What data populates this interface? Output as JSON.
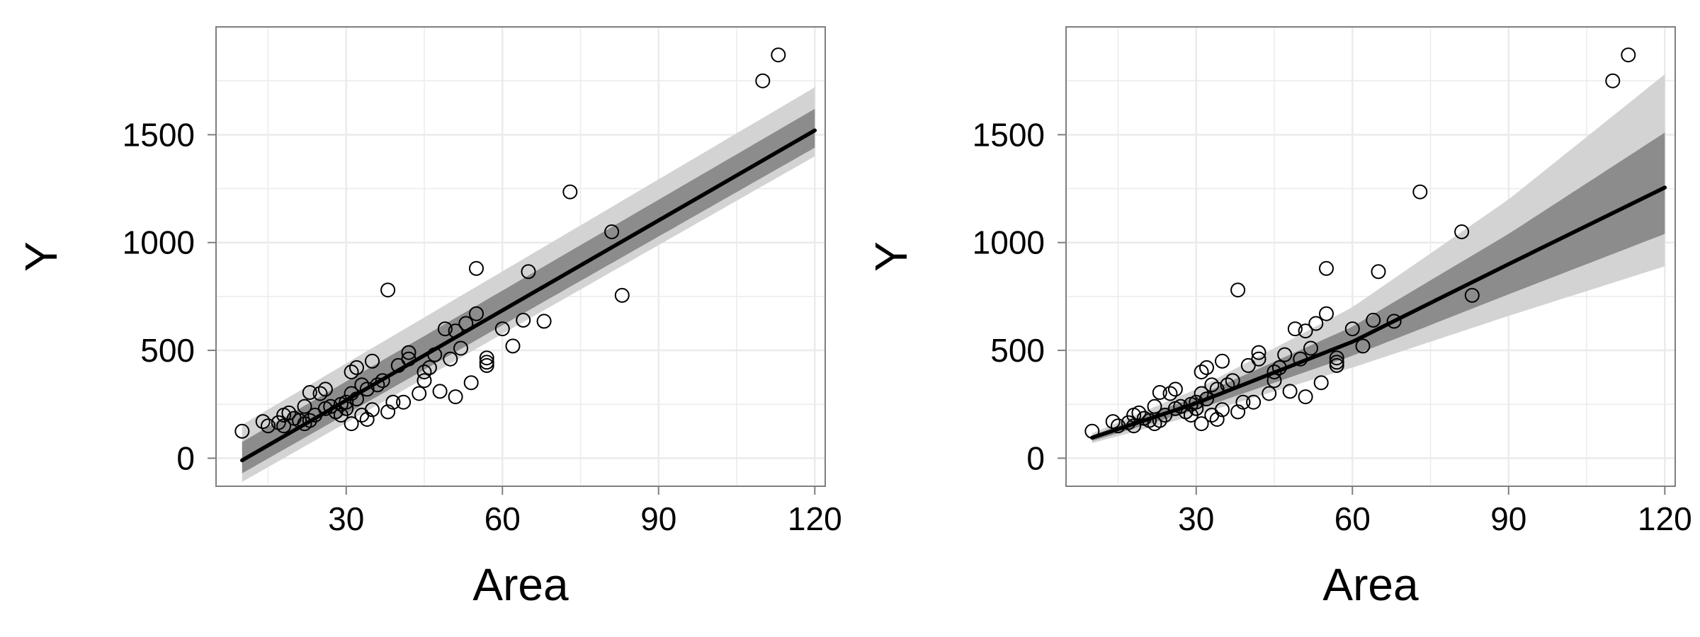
{
  "colors": {
    "panel_background": "#ffffff",
    "grid": "#ebebeb",
    "panel_border": "#7f7f7f",
    "outer_band": "#d3d3d3",
    "inner_band": "#8c8c8c",
    "fit_line": "#000000",
    "points": "#000000"
  },
  "chart_data": [
    {
      "type": "scatter",
      "panel": "left",
      "xlabel": "Area",
      "ylabel": "Y",
      "xlim": [
        5,
        122
      ],
      "ylim": [
        -130,
        2000
      ],
      "xticks": [
        30,
        60,
        90,
        120
      ],
      "yticks": [
        0,
        500,
        1000,
        1500
      ],
      "xtick_labels": [
        "30",
        "60",
        "90",
        "120"
      ],
      "ytick_labels": [
        "0",
        "500",
        "1000",
        "1500"
      ],
      "grid": true,
      "legend": "none",
      "points": [
        [
          10,
          125
        ],
        [
          14,
          170
        ],
        [
          15,
          150
        ],
        [
          17,
          165
        ],
        [
          18,
          200
        ],
        [
          18,
          150
        ],
        [
          19,
          210
        ],
        [
          20,
          185
        ],
        [
          21,
          175
        ],
        [
          22,
          160
        ],
        [
          22,
          240
        ],
        [
          23,
          175
        ],
        [
          23,
          305
        ],
        [
          24,
          200
        ],
        [
          25,
          300
        ],
        [
          26,
          230
        ],
        [
          26,
          320
        ],
        [
          27,
          240
        ],
        [
          28,
          215
        ],
        [
          29,
          200
        ],
        [
          29,
          250
        ],
        [
          30,
          260
        ],
        [
          30,
          230
        ],
        [
          31,
          300
        ],
        [
          31,
          400
        ],
        [
          31,
          160
        ],
        [
          32,
          420
        ],
        [
          32,
          275
        ],
        [
          33,
          200
        ],
        [
          33,
          340
        ],
        [
          34,
          180
        ],
        [
          34,
          320
        ],
        [
          35,
          450
        ],
        [
          35,
          225
        ],
        [
          36,
          340
        ],
        [
          37,
          360
        ],
        [
          38,
          780
        ],
        [
          38,
          215
        ],
        [
          39,
          260
        ],
        [
          40,
          430
        ],
        [
          41,
          260
        ],
        [
          42,
          490
        ],
        [
          42,
          460
        ],
        [
          44,
          300
        ],
        [
          45,
          400
        ],
        [
          45,
          360
        ],
        [
          46,
          420
        ],
        [
          47,
          480
        ],
        [
          48,
          310
        ],
        [
          49,
          600
        ],
        [
          50,
          460
        ],
        [
          51,
          590
        ],
        [
          51,
          285
        ],
        [
          52,
          510
        ],
        [
          53,
          625
        ],
        [
          54,
          350
        ],
        [
          55,
          880
        ],
        [
          55,
          670
        ],
        [
          57,
          465
        ],
        [
          57,
          445
        ],
        [
          57,
          430
        ],
        [
          60,
          600
        ],
        [
          62,
          520
        ],
        [
          64,
          640
        ],
        [
          65,
          865
        ],
        [
          68,
          635
        ],
        [
          73,
          1235
        ],
        [
          81,
          1050
        ],
        [
          83,
          755
        ],
        [
          110,
          1750
        ],
        [
          113,
          1870
        ]
      ],
      "fit": {
        "x": [
          10,
          120
        ],
        "y": [
          -10,
          1520
        ]
      },
      "bands": [
        {
          "level": "outer",
          "x": [
            10,
            120
          ],
          "lower": [
            -110,
            1400
          ],
          "upper": [
            155,
            1720
          ]
        },
        {
          "level": "inner",
          "x": [
            10,
            120
          ],
          "lower": [
            -70,
            1440
          ],
          "upper": [
            75,
            1620
          ]
        }
      ]
    },
    {
      "type": "scatter",
      "panel": "right",
      "xlabel": "Area",
      "ylabel": "Y",
      "xlim": [
        5,
        122
      ],
      "ylim": [
        -130,
        2000
      ],
      "xticks": [
        30,
        60,
        90,
        120
      ],
      "yticks": [
        0,
        500,
        1000,
        1500
      ],
      "xtick_labels": [
        "30",
        "60",
        "90",
        "120"
      ],
      "ytick_labels": [
        "0",
        "500",
        "1000",
        "1500"
      ],
      "grid": true,
      "legend": "none",
      "points": [
        [
          10,
          125
        ],
        [
          14,
          170
        ],
        [
          15,
          150
        ],
        [
          17,
          165
        ],
        [
          18,
          200
        ],
        [
          18,
          150
        ],
        [
          19,
          210
        ],
        [
          20,
          185
        ],
        [
          21,
          175
        ],
        [
          22,
          160
        ],
        [
          22,
          240
        ],
        [
          23,
          175
        ],
        [
          23,
          305
        ],
        [
          24,
          200
        ],
        [
          25,
          300
        ],
        [
          26,
          230
        ],
        [
          26,
          320
        ],
        [
          27,
          240
        ],
        [
          28,
          215
        ],
        [
          29,
          200
        ],
        [
          29,
          250
        ],
        [
          30,
          260
        ],
        [
          30,
          230
        ],
        [
          31,
          300
        ],
        [
          31,
          400
        ],
        [
          31,
          160
        ],
        [
          32,
          420
        ],
        [
          32,
          275
        ],
        [
          33,
          200
        ],
        [
          33,
          340
        ],
        [
          34,
          180
        ],
        [
          34,
          320
        ],
        [
          35,
          450
        ],
        [
          35,
          225
        ],
        [
          36,
          340
        ],
        [
          37,
          360
        ],
        [
          38,
          780
        ],
        [
          38,
          215
        ],
        [
          39,
          260
        ],
        [
          40,
          430
        ],
        [
          41,
          260
        ],
        [
          42,
          490
        ],
        [
          42,
          460
        ],
        [
          44,
          300
        ],
        [
          45,
          400
        ],
        [
          45,
          360
        ],
        [
          46,
          420
        ],
        [
          47,
          480
        ],
        [
          48,
          310
        ],
        [
          49,
          600
        ],
        [
          50,
          460
        ],
        [
          51,
          590
        ],
        [
          51,
          285
        ],
        [
          52,
          510
        ],
        [
          53,
          625
        ],
        [
          54,
          350
        ],
        [
          55,
          880
        ],
        [
          55,
          670
        ],
        [
          57,
          465
        ],
        [
          57,
          445
        ],
        [
          57,
          430
        ],
        [
          60,
          600
        ],
        [
          62,
          520
        ],
        [
          64,
          640
        ],
        [
          65,
          865
        ],
        [
          68,
          635
        ],
        [
          73,
          1235
        ],
        [
          81,
          1050
        ],
        [
          83,
          755
        ],
        [
          110,
          1750
        ],
        [
          113,
          1870
        ]
      ],
      "fit": {
        "x": [
          10,
          30,
          60,
          90,
          120
        ],
        "y": [
          95,
          255,
          540,
          900,
          1255
        ]
      },
      "bands": [
        {
          "level": "outer",
          "x": [
            10,
            30,
            60,
            90,
            120
          ],
          "lower": [
            70,
            200,
            420,
            660,
            890
          ],
          "upper": [
            115,
            320,
            700,
            1200,
            1780
          ]
        },
        {
          "level": "inner",
          "x": [
            10,
            30,
            60,
            90,
            120
          ],
          "lower": [
            80,
            225,
            475,
            760,
            1040
          ],
          "upper": [
            105,
            285,
            610,
            1040,
            1510
          ]
        }
      ]
    }
  ]
}
